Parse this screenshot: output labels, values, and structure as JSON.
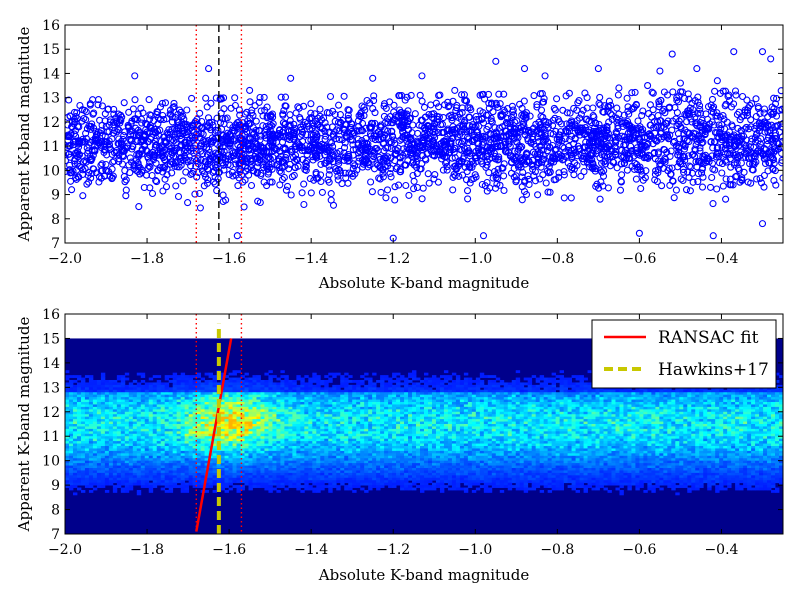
{
  "chart_data": [
    {
      "type": "scatter",
      "xlabel": "Absolute K-band magnitude",
      "ylabel": "Apparent K-band magnitude",
      "xlim": [
        -2.0,
        -0.25
      ],
      "ylim": [
        7,
        16
      ],
      "xticks": [
        -2.0,
        -1.8,
        -1.6,
        -1.4,
        -1.2,
        -1.0,
        -0.8,
        -0.6,
        -0.4
      ],
      "xtick_labels": [
        "−2.0",
        "−1.8",
        "−1.6",
        "−1.4",
        "−1.2",
        "−1.0",
        "−0.8",
        "−0.6",
        "−0.4"
      ],
      "yticks": [
        7,
        8,
        9,
        10,
        11,
        12,
        13,
        14,
        15,
        16
      ],
      "ytick_labels": [
        "7",
        "8",
        "9",
        "10",
        "11",
        "12",
        "13",
        "14",
        "15",
        "16"
      ],
      "marker_color": "#0000ff",
      "marker": "open-circle",
      "grid": false,
      "outliers": [
        {
          "x": -1.83,
          "y": 13.9
        },
        {
          "x": -1.65,
          "y": 14.2
        },
        {
          "x": -1.55,
          "y": 13.3
        },
        {
          "x": -1.45,
          "y": 13.8
        },
        {
          "x": -1.25,
          "y": 13.8
        },
        {
          "x": -1.13,
          "y": 13.9
        },
        {
          "x": -1.05,
          "y": 13.3
        },
        {
          "x": -0.95,
          "y": 14.5
        },
        {
          "x": -0.83,
          "y": 13.9
        },
        {
          "x": -0.7,
          "y": 14.2
        },
        {
          "x": -0.65,
          "y": 13.4
        },
        {
          "x": -0.58,
          "y": 13.5
        },
        {
          "x": -0.55,
          "y": 14.1
        },
        {
          "x": -0.5,
          "y": 13.6
        },
        {
          "x": -0.46,
          "y": 14.2
        },
        {
          "x": -0.41,
          "y": 13.7
        },
        {
          "x": -0.37,
          "y": 14.9
        },
        {
          "x": -0.3,
          "y": 14.9
        },
        {
          "x": -0.28,
          "y": 14.6
        },
        {
          "x": -0.52,
          "y": 14.8
        },
        {
          "x": -0.88,
          "y": 14.2
        },
        {
          "x": -1.58,
          "y": 7.3
        },
        {
          "x": -1.2,
          "y": 7.2
        },
        {
          "x": -0.98,
          "y": 7.3
        },
        {
          "x": -0.6,
          "y": 7.4
        },
        {
          "x": -0.42,
          "y": 7.3
        },
        {
          "x": -0.3,
          "y": 7.8
        }
      ],
      "vlines": [
        {
          "x": -1.68,
          "style": "dotted",
          "color": "#ff0000"
        },
        {
          "x": -1.625,
          "style": "dashed",
          "color": "#000000"
        },
        {
          "x": -1.57,
          "style": "dotted",
          "color": "#ff0000"
        }
      ]
    },
    {
      "type": "heatmap",
      "xlabel": "Absolute K-band magnitude",
      "ylabel": "Apparent K-band magnitude",
      "xlim": [
        -2.0,
        -0.25
      ],
      "ylim": [
        7,
        16
      ],
      "xticks": [
        -2.0,
        -1.8,
        -1.6,
        -1.4,
        -1.2,
        -1.0,
        -0.8,
        -0.6,
        -0.4
      ],
      "xtick_labels": [
        "−2.0",
        "−1.8",
        "−1.6",
        "−1.4",
        "−1.2",
        "−1.0",
        "−0.8",
        "−0.6",
        "−0.4"
      ],
      "yticks": [
        7,
        8,
        9,
        10,
        11,
        12,
        13,
        14,
        15,
        16
      ],
      "ytick_labels": [
        "7",
        "8",
        "9",
        "10",
        "11",
        "12",
        "13",
        "14",
        "15",
        "16"
      ],
      "colormap": "jet",
      "hist_extent": {
        "x": [
          -2.0,
          -0.25
        ],
        "y": [
          7,
          15
        ]
      },
      "background_color": "#00008b",
      "legend": {
        "placement": "top-right",
        "entries": [
          {
            "label": "RANSAC fit",
            "color": "#ff0000",
            "style": "solid"
          },
          {
            "label": "Hawkins+17",
            "color": "#c8c800",
            "style": "dashed"
          }
        ]
      },
      "lines": [
        {
          "name": "RANSAC fit",
          "x": [
            -1.68,
            -1.595
          ],
          "y": [
            7.1,
            15.0
          ],
          "color": "#ff0000"
        },
        {
          "name": "Hawkins+17",
          "x": [
            -1.625,
            -1.625
          ],
          "y": [
            7.0,
            15.6
          ],
          "color": "#c8c800"
        }
      ],
      "vlines": [
        {
          "x": -1.68,
          "style": "dotted",
          "color": "#ff0000"
        },
        {
          "x": -1.57,
          "style": "dotted",
          "color": "#ff0000"
        }
      ]
    }
  ]
}
